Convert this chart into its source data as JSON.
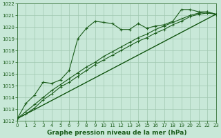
{
  "line1": {
    "x": [
      0,
      1,
      2,
      3,
      4,
      5,
      6,
      7,
      8,
      9,
      10,
      11,
      12,
      13,
      14,
      15,
      16,
      17,
      18,
      19,
      20,
      21,
      22,
      23
    ],
    "y": [
      1012.2,
      1013.5,
      1014.2,
      1015.3,
      1015.2,
      1015.5,
      1016.3,
      1019.0,
      1019.9,
      1020.5,
      1020.4,
      1020.3,
      1019.8,
      1019.8,
      1020.3,
      1019.9,
      1020.1,
      1020.2,
      1020.5,
      1021.5,
      1021.5,
      1021.3,
      1021.3,
      1021.1
    ]
  },
  "line2": {
    "x": [
      0,
      23
    ],
    "y": [
      1012.2,
      1021.1
    ]
  },
  "line3": {
    "x": [
      0,
      23
    ],
    "y": [
      1012.2,
      1021.1
    ]
  },
  "line4": {
    "x": [
      0,
      1,
      2,
      3,
      4,
      5,
      6,
      7,
      8,
      9,
      10,
      11,
      12,
      13,
      14,
      15,
      16,
      17,
      18,
      19,
      20,
      21,
      22,
      23
    ],
    "y": [
      1012.2,
      1012.6,
      1013.1,
      1013.8,
      1014.3,
      1014.9,
      1015.3,
      1015.8,
      1016.3,
      1016.8,
      1017.2,
      1017.6,
      1018.0,
      1018.4,
      1018.8,
      1019.1,
      1019.5,
      1019.8,
      1020.2,
      1020.5,
      1020.9,
      1021.1,
      1021.2,
      1021.1
    ]
  },
  "line5": {
    "x": [
      0,
      1,
      2,
      3,
      4,
      5,
      6,
      7,
      8,
      9,
      10,
      11,
      12,
      13,
      14,
      15,
      16,
      17,
      18,
      19,
      20,
      21,
      22,
      23
    ],
    "y": [
      1012.2,
      1012.8,
      1013.4,
      1014.0,
      1014.6,
      1015.1,
      1015.6,
      1016.1,
      1016.6,
      1017.0,
      1017.5,
      1017.9,
      1018.3,
      1018.7,
      1019.1,
      1019.4,
      1019.8,
      1020.1,
      1020.4,
      1020.7,
      1021.0,
      1021.2,
      1021.3,
      1021.1
    ]
  },
  "bg_color": "#c8e8d8",
  "grid_color": "#a0c8b0",
  "line_color": "#1a5c1a",
  "xlim": [
    0,
    23
  ],
  "ylim": [
    1012,
    1022
  ],
  "yticks": [
    1012,
    1013,
    1014,
    1015,
    1016,
    1017,
    1018,
    1019,
    1020,
    1021,
    1022
  ],
  "xticks": [
    0,
    1,
    2,
    3,
    4,
    5,
    6,
    7,
    8,
    9,
    10,
    11,
    12,
    13,
    14,
    15,
    16,
    17,
    18,
    19,
    20,
    21,
    22,
    23
  ],
  "xlabel": "Graphe pression niveau de la mer (hPa)",
  "xlabel_fontsize": 6.5,
  "tick_fontsize": 5.0,
  "linewidth": 0.8,
  "markersize": 2.5
}
